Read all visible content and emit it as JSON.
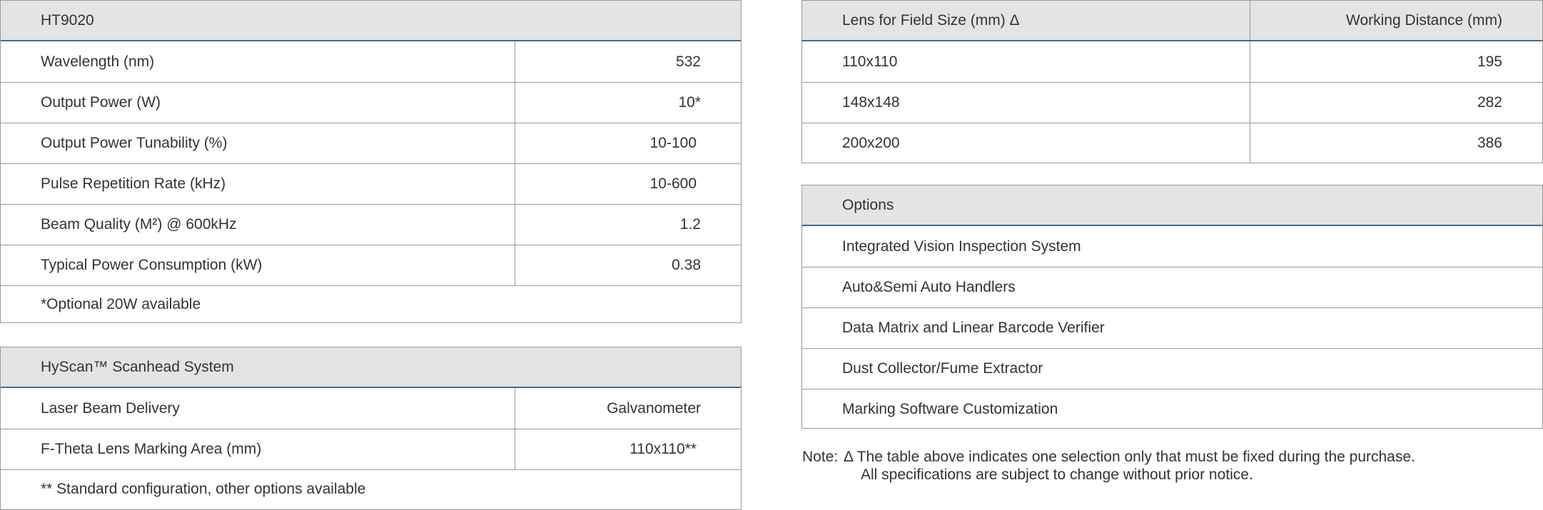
{
  "spec_table": {
    "title": "HT9020",
    "rows": [
      {
        "label": "Wavelength (nm)",
        "value": "532"
      },
      {
        "label": "Output Power (W)",
        "value": "10*"
      },
      {
        "label": "Output Power Tunability (%)",
        "value": "10-100"
      },
      {
        "label": "Pulse Repetition Rate (kHz)",
        "value": "10-600"
      },
      {
        "label": "Beam Quality (M²) @ 600kHz",
        "value": "1.2"
      },
      {
        "label": "Typical Power Consumption (kW)",
        "value": "0.38"
      }
    ],
    "footnote": "*Optional 20W available"
  },
  "scanhead_table": {
    "title": "HyScan™ Scanhead System",
    "rows": [
      {
        "label": "Laser Beam Delivery",
        "value": "Galvanometer"
      },
      {
        "label": "F-Theta Lens Marking Area (mm)",
        "value": "110x110**"
      }
    ],
    "footnote": "** Standard configuration, other options available"
  },
  "lens_table": {
    "headers": [
      "Lens for Field Size (mm) Δ",
      "Working Distance (mm)"
    ],
    "rows": [
      {
        "label": "110x110",
        "value": "195"
      },
      {
        "label": "148x148",
        "value": "282"
      },
      {
        "label": "200x200",
        "value": "386"
      }
    ]
  },
  "options_table": {
    "title": "Options",
    "items": [
      "Integrated Vision Inspection System",
      "Auto&Semi Auto Handlers",
      "Data Matrix and Linear Barcode Verifier",
      "Dust Collector/Fume Extractor",
      "Marking Software Customization"
    ]
  },
  "note": {
    "label": "Note:",
    "line1": "Δ The table above indicates one selection only that must be fixed during the purchase.",
    "line2": "All specifications are subject to change without prior notice."
  },
  "colors": {
    "header_bg": "#e4e4e2",
    "header_rule": "#3f6c8c",
    "border": "#9a9a9a"
  }
}
